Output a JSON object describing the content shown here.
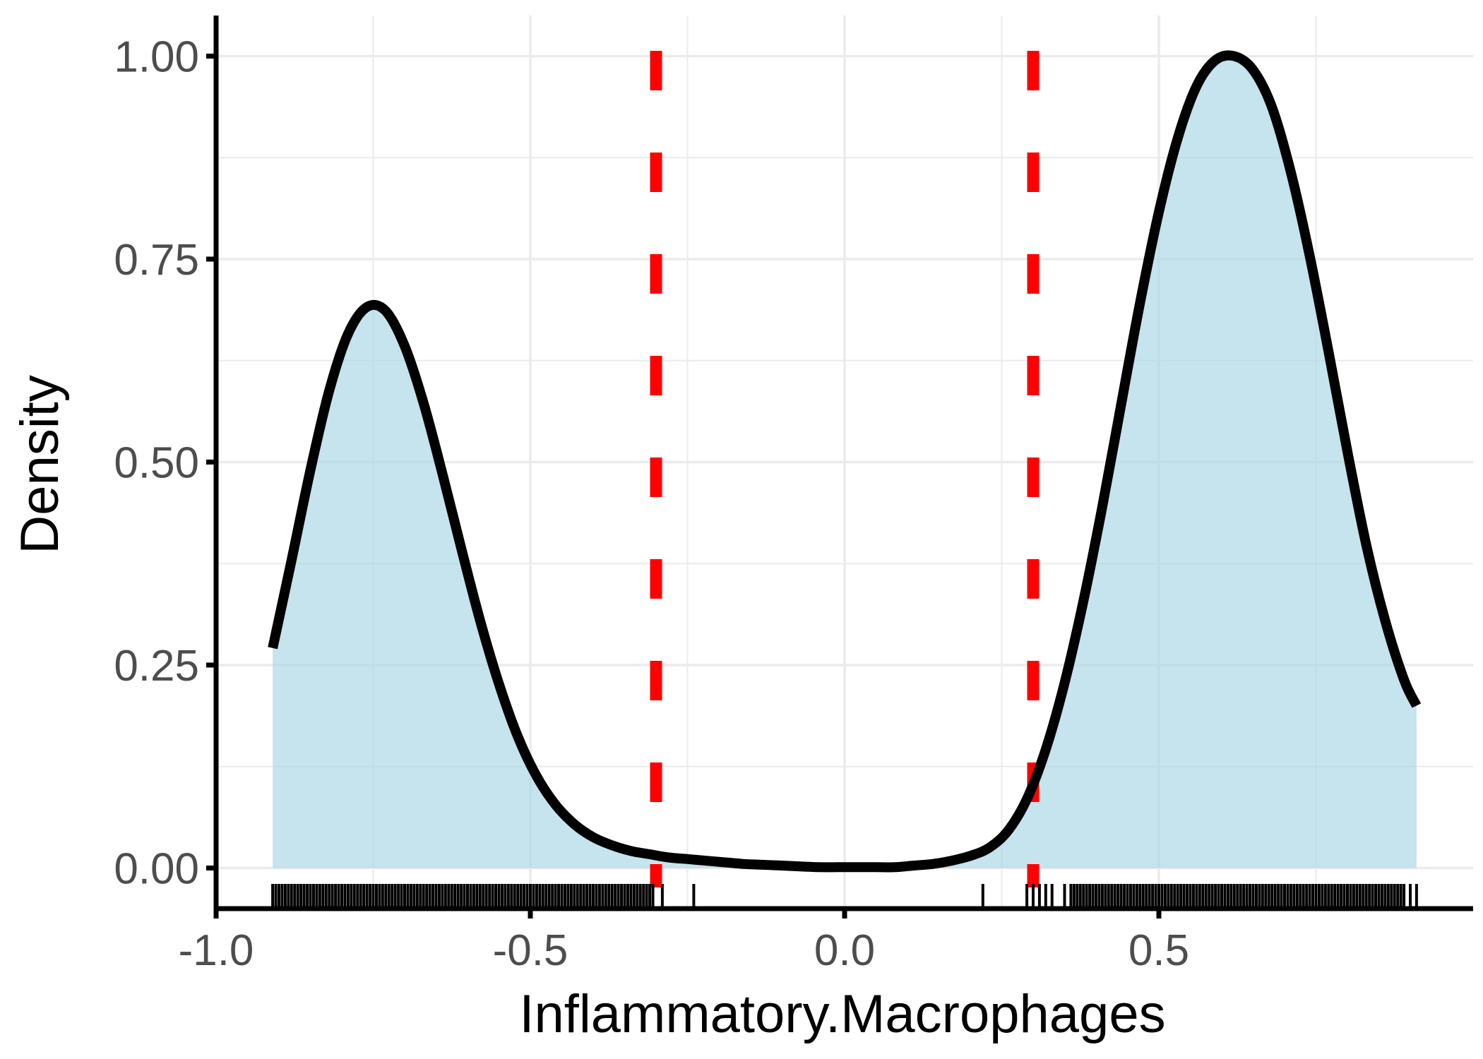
{
  "chart_data": {
    "type": "area",
    "title": "",
    "xlabel": "Inflammatory.Macrophages",
    "ylabel": "Density",
    "xlim": [
      -1.0,
      1.0
    ],
    "ylim": [
      -0.05,
      1.05
    ],
    "x_ticks": [
      {
        "value": -1.0,
        "label": "-1.0"
      },
      {
        "value": -0.5,
        "label": "-0.5"
      },
      {
        "value": 0.0,
        "label": "0.0"
      },
      {
        "value": 0.5,
        "label": "0.5"
      }
    ],
    "y_ticks": [
      {
        "value": 0.0,
        "label": "0.00"
      },
      {
        "value": 0.25,
        "label": "0.25"
      },
      {
        "value": 0.5,
        "label": "0.50"
      },
      {
        "value": 0.75,
        "label": "0.75"
      },
      {
        "value": 1.0,
        "label": "1.00"
      }
    ],
    "grid": true,
    "density": {
      "x": [
        -0.91,
        -0.88,
        -0.85,
        -0.82,
        -0.79,
        -0.76,
        -0.73,
        -0.7,
        -0.67,
        -0.64,
        -0.61,
        -0.58,
        -0.55,
        -0.52,
        -0.49,
        -0.46,
        -0.43,
        -0.4,
        -0.37,
        -0.34,
        -0.31,
        -0.28,
        -0.25,
        -0.22,
        -0.19,
        -0.16,
        -0.13,
        -0.1,
        -0.07,
        -0.04,
        -0.01,
        0.02,
        0.05,
        0.08,
        0.11,
        0.14,
        0.17,
        0.2,
        0.23,
        0.26,
        0.29,
        0.32,
        0.35,
        0.38,
        0.41,
        0.44,
        0.47,
        0.5,
        0.53,
        0.56,
        0.59,
        0.62,
        0.65,
        0.68,
        0.71,
        0.74,
        0.77,
        0.8,
        0.83,
        0.86,
        0.89,
        0.91
      ],
      "y": [
        0.271,
        0.379,
        0.49,
        0.588,
        0.658,
        0.691,
        0.686,
        0.643,
        0.573,
        0.486,
        0.394,
        0.305,
        0.227,
        0.162,
        0.113,
        0.078,
        0.054,
        0.038,
        0.028,
        0.021,
        0.017,
        0.013,
        0.011,
        0.009,
        0.007,
        0.005,
        0.004,
        0.003,
        0.002,
        0.001,
        0.001,
        0.001,
        0.001,
        0.001,
        0.003,
        0.005,
        0.009,
        0.015,
        0.025,
        0.046,
        0.085,
        0.146,
        0.228,
        0.329,
        0.445,
        0.571,
        0.696,
        0.808,
        0.899,
        0.963,
        0.995,
        1.0,
        0.983,
        0.937,
        0.857,
        0.754,
        0.636,
        0.513,
        0.398,
        0.305,
        0.232,
        0.2
      ]
    },
    "cutoffs": [
      -0.3,
      0.3
    ],
    "rug": [
      -0.91,
      -0.905,
      -0.9,
      -0.895,
      -0.89,
      -0.885,
      -0.88,
      -0.875,
      -0.87,
      -0.865,
      -0.86,
      -0.855,
      -0.85,
      -0.845,
      -0.84,
      -0.835,
      -0.83,
      -0.825,
      -0.82,
      -0.815,
      -0.81,
      -0.805,
      -0.8,
      -0.795,
      -0.79,
      -0.785,
      -0.78,
      -0.775,
      -0.77,
      -0.765,
      -0.76,
      -0.755,
      -0.75,
      -0.745,
      -0.74,
      -0.735,
      -0.73,
      -0.725,
      -0.72,
      -0.715,
      -0.71,
      -0.705,
      -0.7,
      -0.695,
      -0.69,
      -0.685,
      -0.68,
      -0.675,
      -0.67,
      -0.665,
      -0.66,
      -0.655,
      -0.65,
      -0.645,
      -0.64,
      -0.635,
      -0.63,
      -0.625,
      -0.62,
      -0.615,
      -0.61,
      -0.605,
      -0.6,
      -0.595,
      -0.59,
      -0.585,
      -0.58,
      -0.575,
      -0.57,
      -0.565,
      -0.56,
      -0.555,
      -0.55,
      -0.545,
      -0.54,
      -0.535,
      -0.53,
      -0.525,
      -0.52,
      -0.515,
      -0.51,
      -0.505,
      -0.5,
      -0.495,
      -0.49,
      -0.485,
      -0.48,
      -0.475,
      -0.47,
      -0.465,
      -0.46,
      -0.455,
      -0.45,
      -0.445,
      -0.44,
      -0.435,
      -0.43,
      -0.425,
      -0.42,
      -0.415,
      -0.41,
      -0.405,
      -0.4,
      -0.395,
      -0.39,
      -0.385,
      -0.38,
      -0.375,
      -0.37,
      -0.365,
      -0.36,
      -0.355,
      -0.35,
      -0.345,
      -0.34,
      -0.335,
      -0.33,
      -0.325,
      -0.32,
      -0.315,
      -0.31,
      -0.305,
      -0.29,
      -0.24,
      0.22,
      0.29,
      0.3,
      0.31,
      0.32,
      0.33,
      0.35,
      0.36,
      0.365,
      0.37,
      0.375,
      0.38,
      0.385,
      0.39,
      0.395,
      0.4,
      0.405,
      0.41,
      0.415,
      0.42,
      0.425,
      0.43,
      0.435,
      0.44,
      0.445,
      0.45,
      0.455,
      0.46,
      0.465,
      0.47,
      0.475,
      0.48,
      0.485,
      0.49,
      0.495,
      0.5,
      0.505,
      0.51,
      0.515,
      0.52,
      0.525,
      0.53,
      0.535,
      0.54,
      0.545,
      0.55,
      0.555,
      0.56,
      0.565,
      0.57,
      0.575,
      0.58,
      0.585,
      0.59,
      0.595,
      0.6,
      0.605,
      0.61,
      0.615,
      0.62,
      0.625,
      0.63,
      0.635,
      0.64,
      0.645,
      0.65,
      0.655,
      0.66,
      0.665,
      0.67,
      0.675,
      0.68,
      0.685,
      0.69,
      0.695,
      0.7,
      0.705,
      0.71,
      0.715,
      0.72,
      0.725,
      0.73,
      0.735,
      0.74,
      0.745,
      0.75,
      0.755,
      0.76,
      0.765,
      0.77,
      0.775,
      0.78,
      0.785,
      0.79,
      0.795,
      0.8,
      0.805,
      0.81,
      0.815,
      0.82,
      0.825,
      0.83,
      0.835,
      0.84,
      0.845,
      0.85,
      0.855,
      0.86,
      0.865,
      0.87,
      0.875,
      0.88,
      0.885,
      0.89,
      0.9,
      0.91
    ],
    "colors": {
      "fill": "#add8e6",
      "line": "#000000",
      "cutoff": "#ff0000",
      "grid": "#ebebeb",
      "axis": "#000000",
      "tick_text": "#4d4d4d"
    }
  }
}
